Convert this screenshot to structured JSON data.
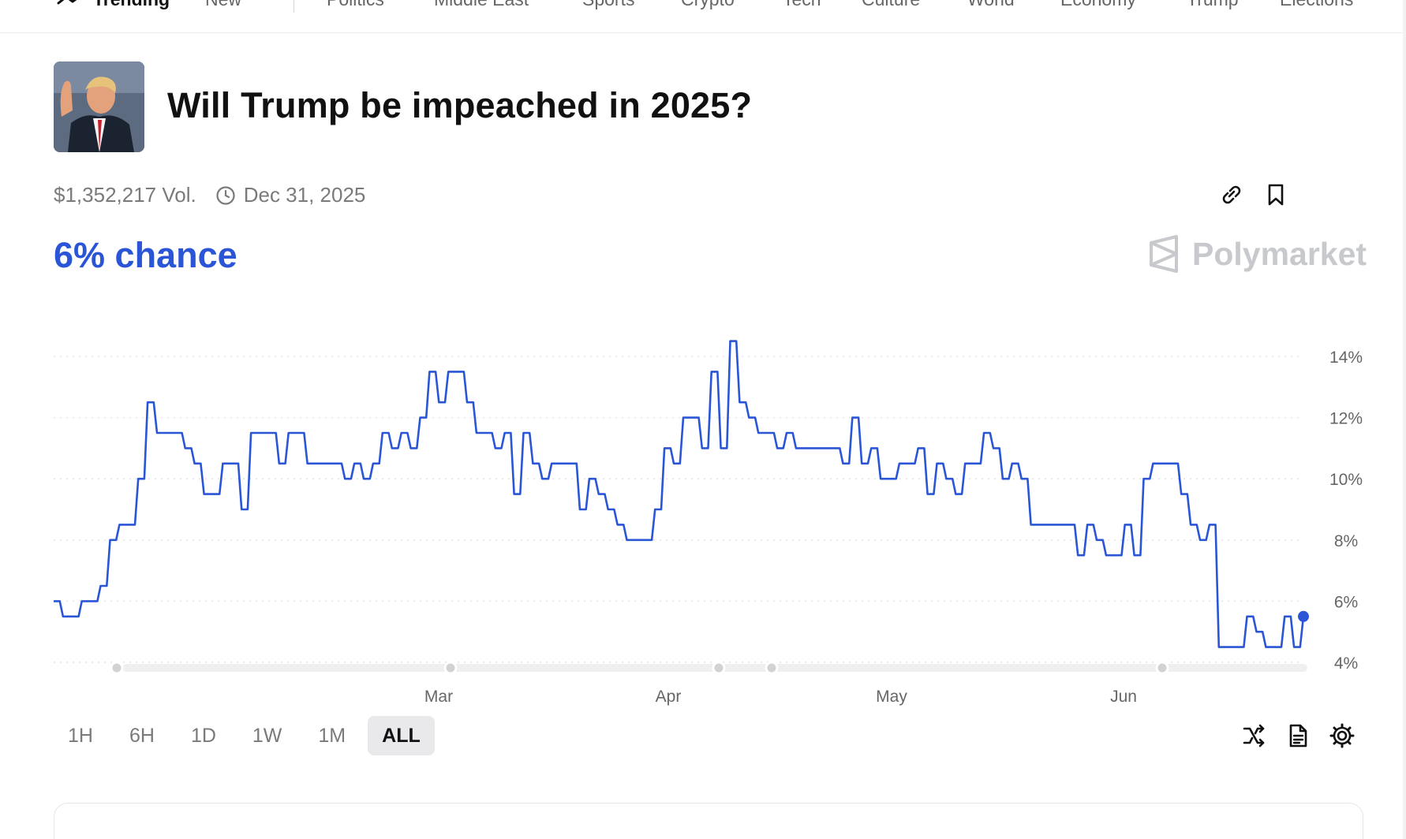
{
  "nav": {
    "items": [
      "Trending",
      "New",
      "Politics",
      "Middle East",
      "Sports",
      "Crypto",
      "Tech",
      "Culture",
      "World",
      "Economy",
      "Trump",
      "Elections"
    ]
  },
  "market": {
    "title": "Will Trump be impeached in 2025?",
    "volume": "$1,352,217 Vol.",
    "end_date": "Dec 31, 2025",
    "chance": "6% chance",
    "brand": "Polymarket",
    "accent_color": "#2a55d6"
  },
  "icons": {
    "trending": "trending-up-icon",
    "clock": "clock-icon",
    "link": "link-icon",
    "bookmark": "bookmark-icon",
    "shuffle": "shuffle-icon",
    "document": "document-icon",
    "settings": "gear-icon"
  },
  "time_ranges": {
    "options": [
      "1H",
      "6H",
      "1D",
      "1W",
      "1M",
      "ALL"
    ],
    "selected": "ALL"
  },
  "chart_data": {
    "type": "line",
    "y_ticks": [
      "14%",
      "12%",
      "10%",
      "8%",
      "6%",
      "4%"
    ],
    "x_ticks": [
      "Mar",
      "Apr",
      "May",
      "Jun"
    ],
    "ylim": [
      4,
      14
    ],
    "grid": true,
    "line_color": "#2a55d6",
    "series": [
      {
        "values": [
          6.0,
          5.5,
          5.5,
          6.0,
          6.0,
          6.5,
          8.0,
          8.5,
          8.5,
          10.0,
          12.5,
          11.5,
          11.5,
          11.5,
          11.0,
          10.5,
          9.5,
          9.5,
          10.5,
          10.5,
          9.0,
          11.5,
          11.5,
          11.5,
          10.5,
          11.5,
          11.5,
          10.5,
          10.5,
          10.5,
          10.5,
          10.0,
          10.5,
          10.0,
          10.5,
          11.5,
          11.0,
          11.5,
          11.0,
          12.0,
          13.5,
          12.5,
          13.5,
          13.5,
          12.5,
          11.5,
          11.5,
          11.0,
          11.5,
          9.5,
          11.5,
          10.5,
          10.0,
          10.5,
          10.5,
          10.5,
          9.0,
          10.0,
          9.5,
          9.0,
          8.5,
          8.0,
          8.0,
          8.0,
          9.0,
          11.0,
          10.5,
          12.0,
          12.0,
          11.0,
          13.5,
          11.0,
          14.5,
          12.5,
          12.0,
          11.5,
          11.5,
          11.0,
          11.5,
          11.0,
          11.0,
          11.0,
          11.0,
          11.0,
          10.5,
          12.0,
          10.5,
          11.0,
          10.0,
          10.0,
          10.5,
          10.5,
          11.0,
          9.5,
          10.5,
          10.0,
          9.5,
          10.5,
          10.5,
          11.5,
          11.0,
          10.0,
          10.5,
          10.0,
          8.5,
          8.5,
          8.5,
          8.5,
          8.5,
          7.5,
          8.5,
          8.0,
          7.5,
          7.5,
          8.5,
          7.5,
          10.0,
          10.5,
          10.5,
          10.5,
          9.5,
          8.5,
          8.0,
          8.5,
          4.5,
          4.5,
          4.5,
          5.5,
          5.0,
          4.5,
          4.5,
          5.5,
          4.5,
          5.5
        ]
      }
    ]
  }
}
